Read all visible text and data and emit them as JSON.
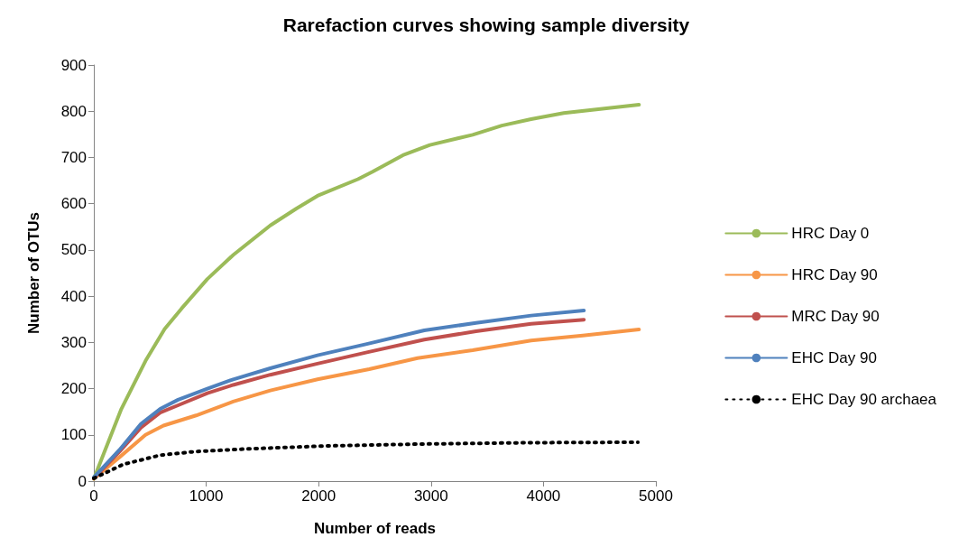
{
  "chart_data": {
    "type": "line",
    "title": "Rarefaction curves showing sample diversity",
    "xlabel": "Number of reads",
    "ylabel": "Number of OTUs",
    "xlim": [
      0,
      5000
    ],
    "xticks": [
      0,
      1000,
      2000,
      3000,
      4000,
      5000
    ],
    "ylim": [
      0,
      900
    ],
    "yticks": [
      0,
      100,
      200,
      300,
      400,
      500,
      600,
      700,
      800,
      900
    ],
    "grid": false,
    "legend": "right",
    "marker": "none",
    "series": [
      {
        "name": "HRC Day 0",
        "color": "#9bbb59",
        "line_style": "solid",
        "x": [
          0,
          245,
          460,
          630,
          780,
          1010,
          1240,
          1570,
          1800,
          1990,
          2350,
          2480,
          2750,
          2990,
          3370,
          3630,
          3890,
          4180,
          4850
        ],
        "values": [
          5,
          156,
          260,
          329,
          373,
          437,
          489,
          553,
          589,
          617,
          653,
          669,
          705,
          727,
          749,
          769,
          783,
          796,
          814
        ]
      },
      {
        "name": "HRC Day 90",
        "color": "#f79646",
        "line_style": "solid",
        "x": [
          0,
          230,
          460,
          620,
          910,
          1240,
          1570,
          1990,
          2450,
          2880,
          3370,
          3890,
          4350,
          4850
        ],
        "values": [
          5,
          52,
          100,
          120,
          142,
          172,
          196,
          220,
          242,
          266,
          283,
          304,
          315,
          328
        ]
      },
      {
        "name": "MRC Day 90",
        "color": "#c0504d",
        "line_style": "solid",
        "x": [
          0,
          230,
          420,
          590,
          750,
          1010,
          1240,
          1570,
          1990,
          2420,
          2940,
          3400,
          3890,
          4360
        ],
        "values": [
          6,
          64,
          116,
          148,
          164,
          190,
          208,
          230,
          254,
          278,
          306,
          324,
          340,
          349
        ]
      },
      {
        "name": "EHC Day 90",
        "color": "#4f81bd",
        "line_style": "solid",
        "x": [
          0,
          230,
          420,
          590,
          750,
          1010,
          1240,
          1570,
          1990,
          2420,
          2940,
          3400,
          3890,
          4360
        ],
        "values": [
          8,
          68,
          124,
          156,
          176,
          200,
          220,
          244,
          272,
          296,
          326,
          342,
          358,
          369
        ]
      },
      {
        "name": "EHC Day 90 archaea",
        "color": "#000000",
        "line_style": "dotted",
        "x": [
          0,
          260,
          590,
          910,
          1400,
          2060,
          2880,
          3860,
          4840
        ],
        "values": [
          6,
          36,
          56,
          64,
          70,
          76,
          80,
          83,
          84
        ]
      }
    ]
  }
}
